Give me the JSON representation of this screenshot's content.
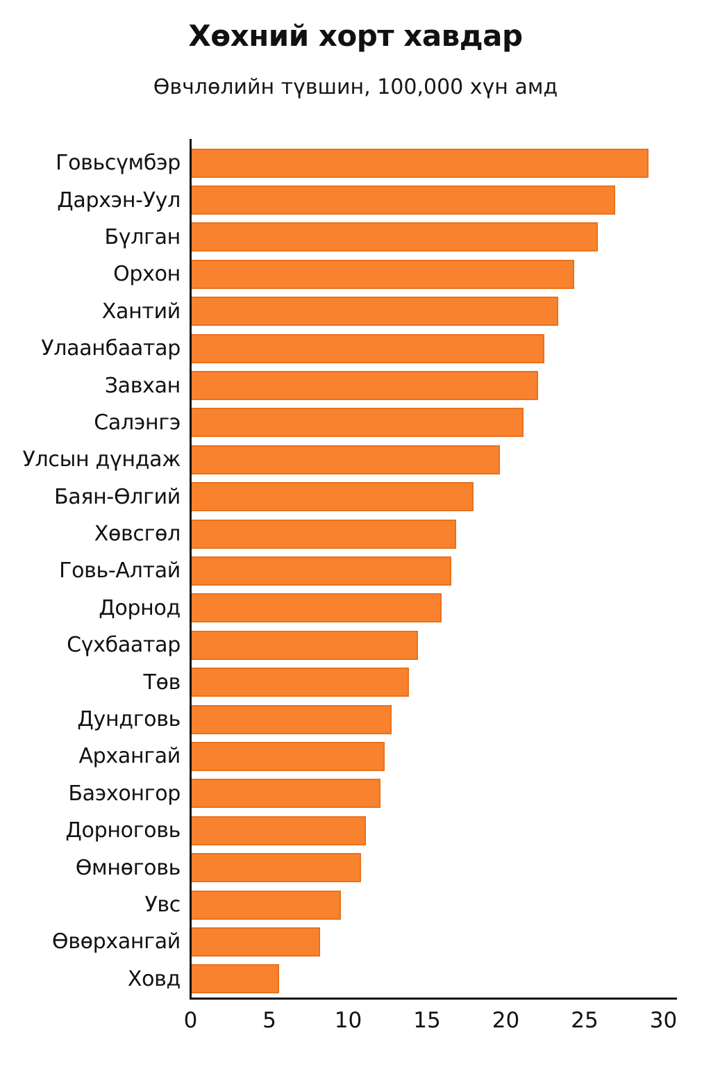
{
  "title": "Хөхний хорт хавдар",
  "subtitle": "Өвчлөлийн түвшин, 100,000 хүн амд",
  "colors": {
    "bar_fill": "#F8822D",
    "bar_border": "#E9711C",
    "text": "#111111",
    "axis": "#111111",
    "background": "#FFFFFF"
  },
  "chart_data": {
    "type": "bar",
    "orientation": "horizontal",
    "title": "Хөхний хорт хавдар",
    "subtitle": "Өвчлөлийн түвшин, 100,000 хүн амд",
    "categories": [
      "Говьсүмбэр",
      "Дархэн-Уул",
      "Бүлган",
      "Орхон",
      "Хантий",
      "Улаанбаатар",
      "Завхан",
      "Салэнгэ",
      "Улсын дүндаж",
      "Баян-Өлгий",
      "Хөвсгөл",
      "Говь-Алтай",
      "Дорнод",
      "Сүхбаатар",
      "Төв",
      "Дундговь",
      "Архангай",
      "Баэхонгор",
      "Дорноговь",
      "Өмнөговь",
      "Увс",
      "Өвөрхангай",
      "Ховд"
    ],
    "values": [
      29.1,
      27.0,
      25.9,
      24.4,
      23.4,
      22.5,
      22.1,
      21.2,
      19.7,
      18.0,
      16.9,
      16.6,
      16.0,
      14.5,
      13.9,
      12.8,
      12.4,
      12.1,
      11.2,
      10.9,
      9.6,
      8.3,
      5.7
    ],
    "xlabel": "",
    "ylabel": "",
    "xlim": [
      0,
      30.8
    ],
    "x_ticks": [
      0,
      5,
      10,
      15,
      20,
      25,
      30
    ],
    "grid": false,
    "legend": false
  }
}
